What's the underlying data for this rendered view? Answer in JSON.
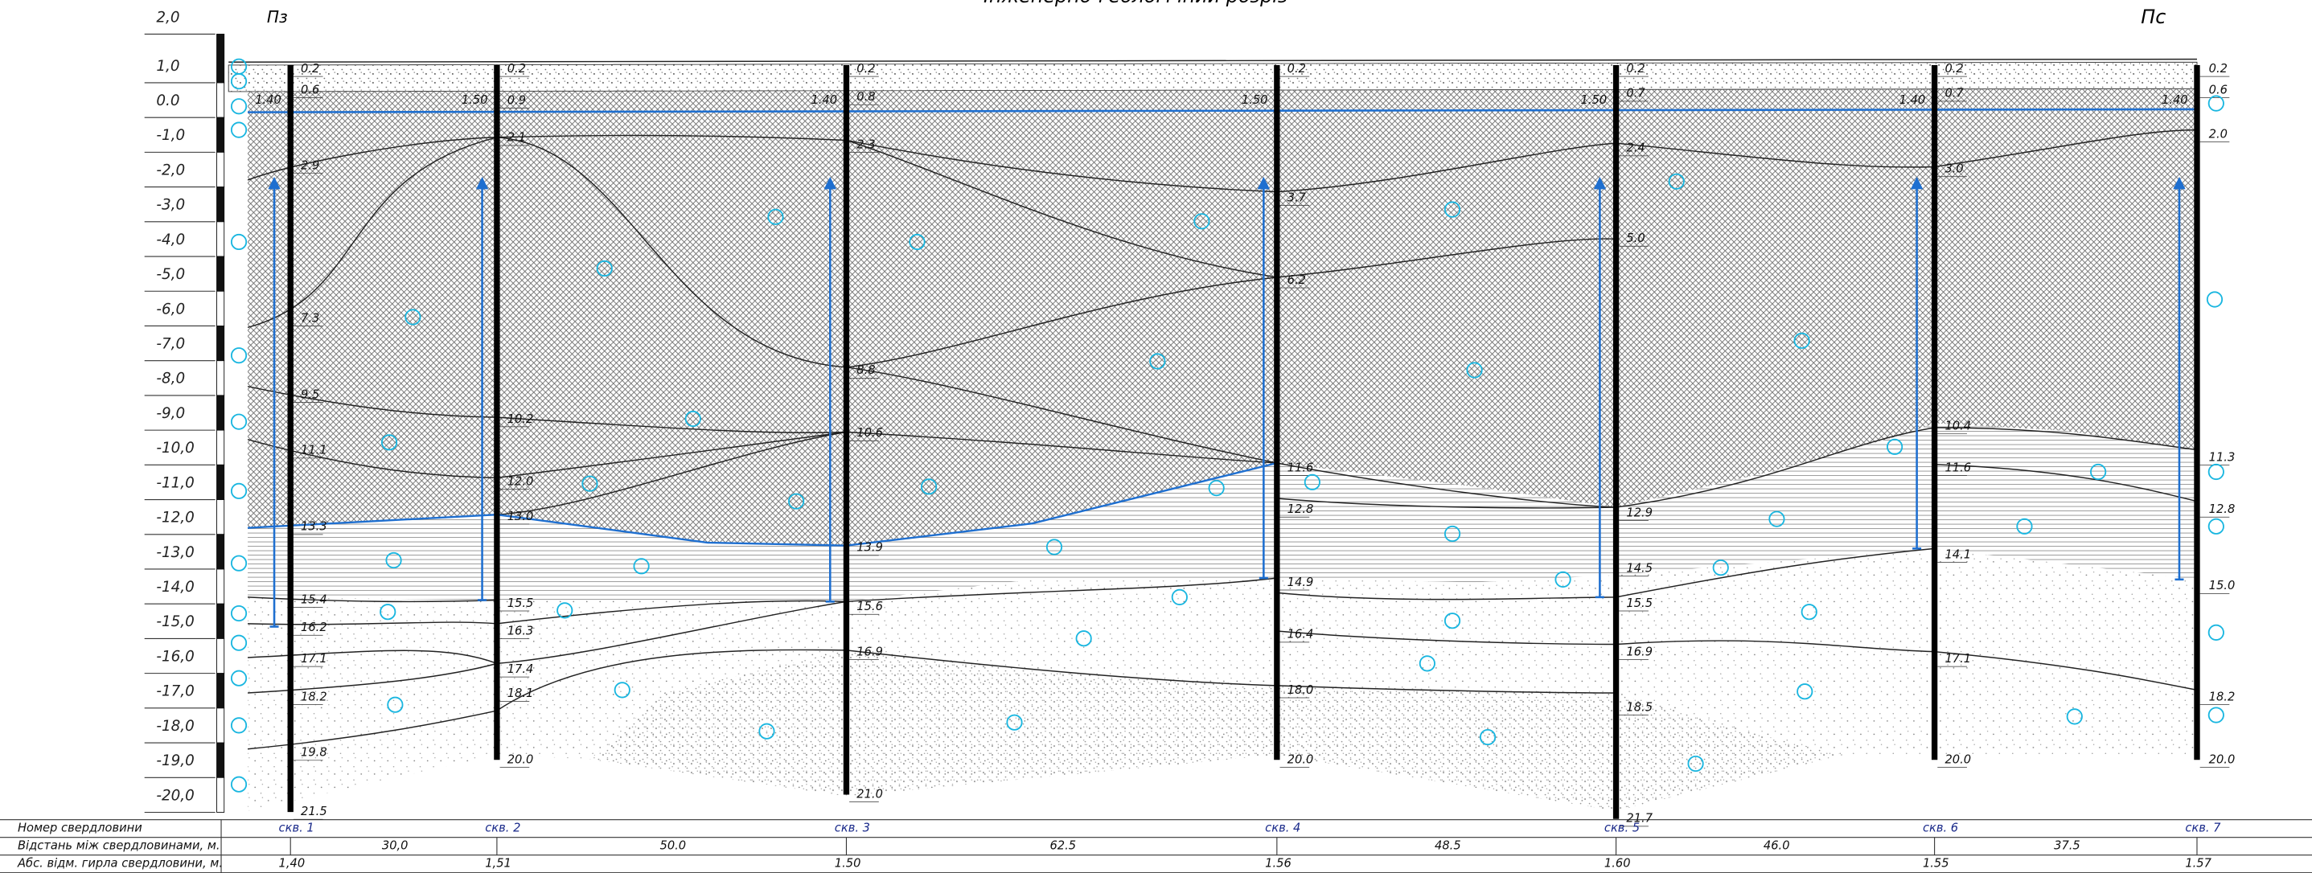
{
  "header": {
    "title": "Інженерно-геологічний розріз",
    "left_mark": "Пз",
    "right_mark": "Пс"
  },
  "scale": {
    "labels": [
      "2,0",
      "1,0",
      "0.0",
      "-1,0",
      "-2,0",
      "-3,0",
      "-4,0",
      "-5,0",
      "-6,0",
      "-7,0",
      "-8,0",
      "-9,0",
      "-10,0",
      "-11,0",
      "-12,0",
      "-13,0",
      "-14,0",
      "-15,0",
      "-16,0",
      "-17,0",
      "-18,0",
      "-19,0",
      "-20,0"
    ]
  },
  "boreholes": [
    {
      "name": "скв. 1",
      "elevation": "1,40",
      "water_mark": "1.40",
      "depths": [
        "0.2",
        "0.6",
        "2.9",
        "7.3",
        "9.5",
        "11.1",
        "13.3",
        "15.4",
        "16.2",
        "17.1",
        "18.2",
        "19.8",
        "21.5"
      ]
    },
    {
      "name": "скв. 2",
      "elevation": "1,51",
      "water_mark": "1.50",
      "depths": [
        "0.2",
        "0.9",
        "2.1",
        "10.2",
        "12.0",
        "13.0",
        "15.5",
        "16.3",
        "17.4",
        "18.1",
        "20.0"
      ]
    },
    {
      "name": "скв. 3",
      "elevation": "1.50",
      "water_mark": "1.40",
      "depths": [
        "0.2",
        "0.8",
        "2.3",
        "8.8",
        "10.6",
        "13.9",
        "15.6",
        "16.9",
        "21.0"
      ]
    },
    {
      "name": "скв. 4",
      "elevation": "1.56",
      "water_mark": "1.50",
      "depths": [
        "0.2",
        "3.7",
        "6.2",
        "11.6",
        "12.8",
        "14.9",
        "16.4",
        "18.0",
        "20.0"
      ]
    },
    {
      "name": "скв. 5",
      "elevation": "1.60",
      "water_mark": "1.50",
      "depths": [
        "0.2",
        "0.7",
        "2.4",
        "5.0",
        "12.9",
        "14.5",
        "15.5",
        "16.9",
        "18.5",
        "21.7"
      ]
    },
    {
      "name": "скв. 6",
      "elevation": "1.55",
      "water_mark": "1.40",
      "depths": [
        "0.2",
        "0.7",
        "3.0",
        "10.4",
        "11.6",
        "14.1",
        "17.1",
        "20.0"
      ]
    },
    {
      "name": "скв. 7",
      "elevation": "1.57",
      "water_mark": "1.40",
      "depths": [
        "0.2",
        "0.6",
        "2.0",
        "11.3",
        "12.8",
        "15.0",
        "18.2",
        "20.0"
      ]
    }
  ],
  "distances": [
    "30,0",
    "50.0",
    "62.5",
    "48.5",
    "46.0",
    "37.5"
  ],
  "table": {
    "row_labels": [
      "Номер свердловини",
      "Відстань між свердловинами, м.",
      "Абс. відм. гирла свердловини, м."
    ]
  }
}
